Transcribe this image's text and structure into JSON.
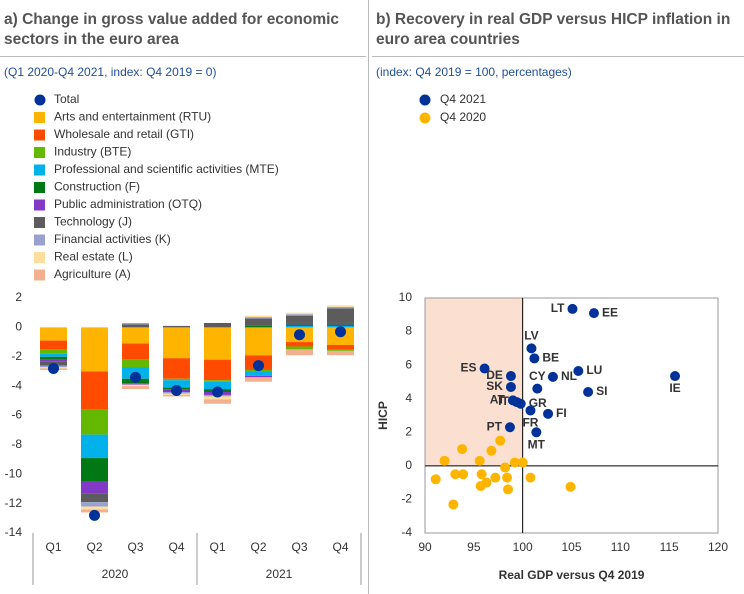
{
  "chart_data": [
    {
      "type": "stacked_bar",
      "title": "a) Change in gross value added for economic sectors in the euro area",
      "subtitle": "(Q1 2020-Q4 2021, index: Q4 2019 = 0)",
      "categories": [
        "Q1",
        "Q2",
        "Q3",
        "Q4",
        "Q1",
        "Q2",
        "Q3",
        "Q4"
      ],
      "groups": [
        {
          "label": "2020",
          "count": 4
        },
        {
          "label": "2021",
          "count": 4
        }
      ],
      "ylim": [
        -14,
        2
      ],
      "yticks": [
        -14,
        -12,
        -10,
        -8,
        -6,
        -4,
        -2,
        0,
        2
      ],
      "series": [
        {
          "name": "Total",
          "mark": "dot",
          "color": "#003299",
          "values": [
            -2.8,
            -12.8,
            -3.4,
            -4.3,
            -4.4,
            -2.6,
            -0.5,
            -0.3
          ]
        },
        {
          "name": "Arts and entertainment (RTU)",
          "color": "#ffb400",
          "values": [
            -0.9,
            -3.0,
            -1.1,
            -2.1,
            -2.2,
            -1.9,
            -1.0,
            -1.2
          ]
        },
        {
          "name": "Wholesale and retail (GTI)",
          "color": "#ff4b00",
          "values": [
            -0.6,
            -2.6,
            -1.1,
            -1.4,
            -1.4,
            -1.0,
            -0.3,
            -0.3
          ]
        },
        {
          "name": "Industry (BTE)",
          "color": "#65b800",
          "values": [
            -0.3,
            -1.7,
            -0.5,
            -0.1,
            -0.1,
            -0.1,
            -0.2,
            -0.1
          ]
        },
        {
          "name": "Professional and scientific activities (MTE)",
          "color": "#00b1ea",
          "values": [
            -0.2,
            -1.6,
            -0.8,
            -0.5,
            -0.5,
            -0.3,
            0.1,
            0.1
          ]
        },
        {
          "name": "Construction (F)",
          "color": "#007816",
          "values": [
            -0.2,
            -1.6,
            -0.3,
            -0.1,
            -0.2,
            0.1,
            0.1,
            0.1
          ]
        },
        {
          "name": "Public administration (OTQ)",
          "color": "#8139c6",
          "values": [
            -0.1,
            -0.8,
            -0.1,
            -0.2,
            -0.2,
            -0.1,
            0.1,
            0.1
          ]
        },
        {
          "name": "Technology (J)",
          "color": "#5c5c5c",
          "values": [
            -0.3,
            -0.6,
            0.2,
            0.1,
            0.3,
            0.5,
            0.5,
            1.0
          ]
        },
        {
          "name": "Financial activities (K)",
          "color": "#98a1d0",
          "values": [
            -0.1,
            -0.3,
            0.1,
            -0.1,
            -0.1,
            0.1,
            0.1,
            0.1
          ]
        },
        {
          "name": "Real estate (L)",
          "color": "#fdde9c",
          "values": [
            -0.1,
            -0.2,
            -0.1,
            -0.1,
            -0.2,
            0.1,
            0.1,
            0.1
          ]
        },
        {
          "name": "Agriculture (A)",
          "color": "#f3b08e",
          "values": [
            -0.1,
            -0.2,
            -0.2,
            -0.1,
            -0.3,
            -0.3,
            -0.4,
            -0.3
          ]
        }
      ]
    },
    {
      "type": "scatter",
      "title": "b) Recovery in real GDP versus HICP inflation in euro area countries",
      "subtitle": "(index: Q4 2019 = 100, percentages)",
      "xlabel": "Real GDP versus Q4 2019",
      "ylabel": "HICP",
      "xlim": [
        90,
        120
      ],
      "xticks": [
        90,
        95,
        100,
        105,
        110,
        115,
        120
      ],
      "ylim": [
        -4,
        10
      ],
      "yticks": [
        -4,
        -2,
        0,
        2,
        4,
        6,
        8,
        10
      ],
      "shaded_region": {
        "x": [
          90,
          100
        ],
        "y": [
          0,
          10
        ]
      },
      "reference_lines": {
        "x": 100,
        "y": 0
      },
      "series": [
        {
          "name": "Q4 2021",
          "color": "#003299",
          "labels": [
            "LT",
            "EE",
            "LV",
            "BE",
            "ES",
            "NL",
            "LU",
            "DE",
            "CY",
            "SK",
            "SI",
            "IE",
            "AT",
            "GR",
            "IT",
            "FR",
            "FI",
            "PT",
            "MT"
          ],
          "x": [
            105.1,
            107.3,
            100.9,
            101.2,
            96.1,
            103.1,
            105.7,
            98.8,
            101.5,
            98.8,
            106.7,
            115.6,
            99.0,
            99.8,
            99.4,
            100.8,
            102.6,
            98.7,
            101.4
          ],
          "values": [
            9.35,
            9.1,
            7.0,
            6.4,
            5.8,
            5.3,
            5.65,
            5.35,
            4.6,
            4.7,
            4.4,
            5.35,
            3.9,
            3.7,
            3.8,
            3.3,
            3.1,
            2.3,
            2.0
          ]
        },
        {
          "name": "Q4 2020",
          "color": "#ffb400",
          "x": [
            91.1,
            92.0,
            93.1,
            93.8,
            93.9,
            92.9,
            95.6,
            95.8,
            95.7,
            96.3,
            96.8,
            97.2,
            97.7,
            98.2,
            98.4,
            98.5,
            99.2,
            100.0,
            100.8,
            104.9
          ],
          "values": [
            -0.8,
            0.3,
            -0.5,
            1.0,
            -0.5,
            -2.3,
            0.3,
            -0.5,
            -1.2,
            -1.0,
            0.9,
            -0.7,
            1.5,
            -0.1,
            -0.7,
            -1.4,
            0.2,
            0.2,
            -0.7,
            -1.25
          ]
        }
      ]
    }
  ]
}
